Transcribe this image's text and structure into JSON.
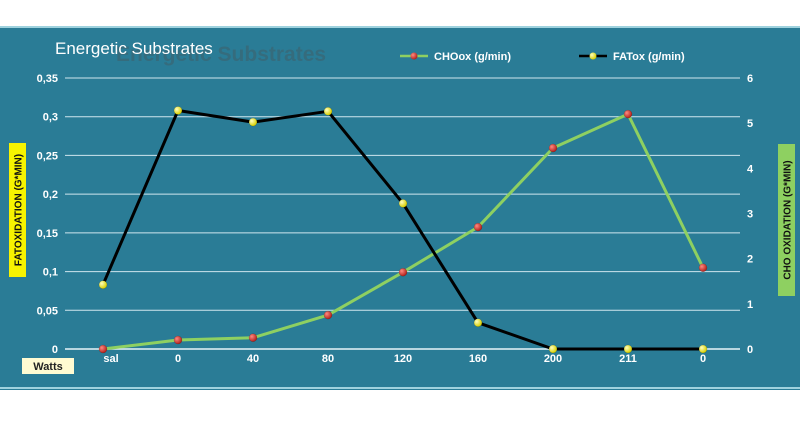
{
  "chart_data": {
    "type": "line",
    "title": "Energetic Substrates",
    "categories": [
      "sal",
      "0",
      "40",
      "80",
      "120",
      "160",
      "200",
      "211",
      "0"
    ],
    "x_tag": "Watts",
    "left_axis": {
      "label": "FATOXIDATION (G*MIN)",
      "ticks": [
        "0",
        "0,05",
        "0,1",
        "0,15",
        "0,2",
        "0,25",
        "0,3",
        "0,35"
      ],
      "ylim": [
        0,
        0.35
      ],
      "color": "#f7f300"
    },
    "right_axis": {
      "label": "CHO OXIDATION (G*MIN)",
      "ticks": [
        "0",
        "1",
        "2",
        "3",
        "4",
        "5",
        "6"
      ],
      "ylim": [
        0,
        6
      ],
      "color": "#8ed061"
    },
    "grid": true,
    "legend_position": "top-right",
    "series": [
      {
        "name": "CHOox (g/min)",
        "axis": "right",
        "line_color": "#8ed061",
        "marker_color": "#d8302b",
        "values": [
          0,
          0.2,
          0.25,
          0.75,
          1.7,
          2.7,
          4.45,
          5.2,
          1.8
        ]
      },
      {
        "name": "FATox (g/min)",
        "axis": "left",
        "line_color": "#000000",
        "marker_color": "#f5f20c",
        "values": [
          0.083,
          0.308,
          0.293,
          0.307,
          0.188,
          0.034,
          0,
          0,
          0
        ]
      }
    ]
  }
}
